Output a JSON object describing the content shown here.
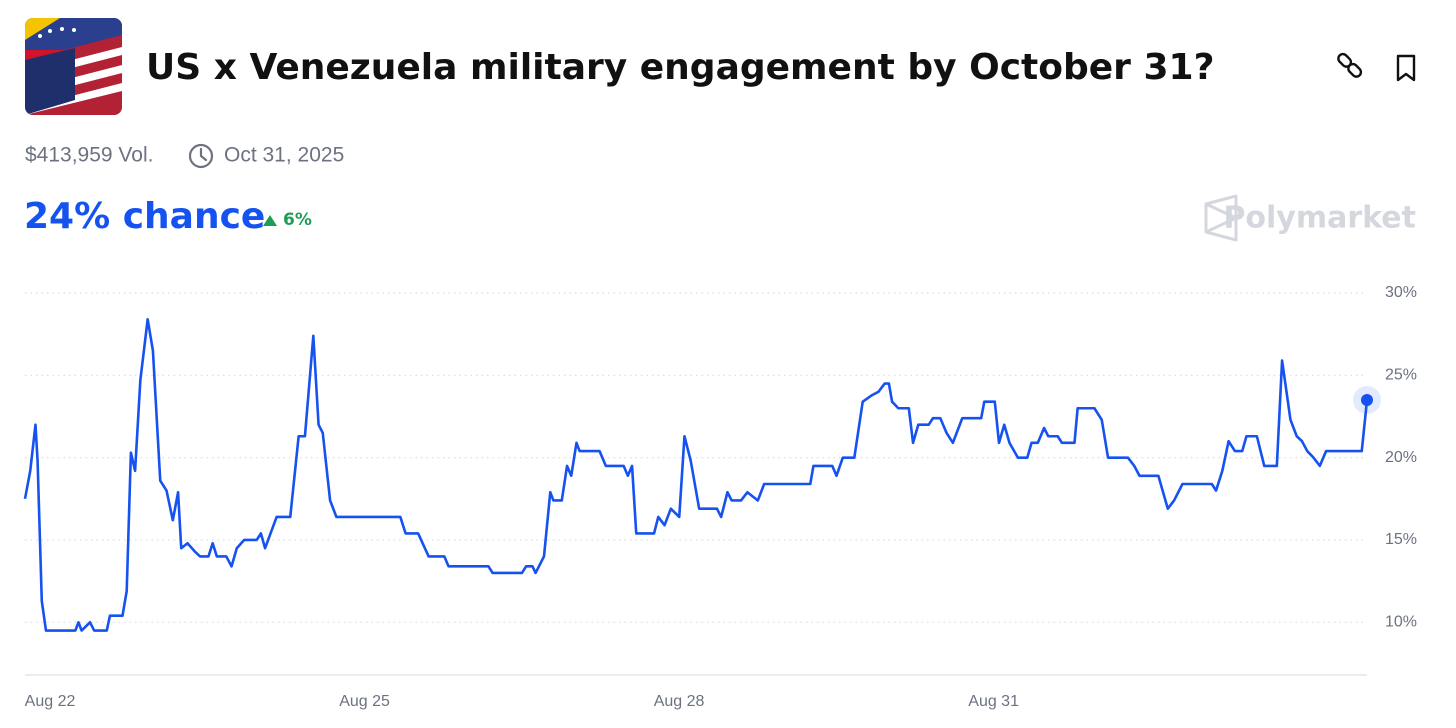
{
  "header": {
    "title": "US x Venezuela military engagement by October 31?",
    "volume": "$413,959 Vol.",
    "end_date": "Oct 31, 2025",
    "chance": "24% chance",
    "change": "6%",
    "brand": "Polymarket"
  },
  "chart_data": {
    "type": "line",
    "color": "#1652f0",
    "grid": true,
    "x": [
      21.86,
      21.91,
      21.96,
      21.98,
      22.02,
      22.06,
      22.34,
      22.37,
      22.4,
      22.48,
      22.52,
      22.64,
      22.67,
      22.79,
      22.83,
      22.87,
      22.91,
      22.96,
      23.03,
      23.08,
      23.15,
      23.21,
      23.27,
      23.32,
      23.35,
      23.41,
      23.48,
      23.53,
      23.61,
      23.65,
      23.69,
      23.78,
      23.83,
      23.88,
      23.95,
      24.07,
      24.11,
      24.15,
      24.26,
      24.39,
      24.47,
      24.53,
      24.61,
      24.66,
      24.7,
      24.77,
      24.83,
      25.44,
      25.49,
      25.61,
      25.71,
      25.86,
      25.9,
      26.28,
      26.32,
      26.6,
      26.64,
      26.7,
      26.73,
      26.81,
      26.87,
      26.9,
      26.98,
      27.03,
      27.07,
      27.12,
      27.15,
      27.34,
      27.4,
      27.57,
      27.61,
      27.65,
      27.69,
      27.86,
      27.9,
      27.96,
      28.02,
      28.1,
      28.15,
      28.21,
      28.29,
      28.46,
      28.5,
      28.56,
      28.6,
      28.69,
      28.75,
      28.85,
      28.91,
      29.35,
      29.38,
      29.56,
      29.6,
      29.66,
      29.77,
      29.85,
      29.94,
      30.0,
      30.06,
      30.1,
      30.13,
      30.19,
      30.29,
      30.33,
      30.38,
      30.48,
      30.52,
      30.59,
      30.65,
      30.71,
      30.8,
      30.98,
      31.01,
      31.11,
      31.15,
      31.2,
      31.25,
      31.33,
      31.42,
      31.46,
      31.52,
      31.58,
      31.62,
      31.71,
      31.75,
      31.87,
      31.9,
      32.06,
      32.13,
      32.19,
      32.38,
      32.44,
      32.49,
      32.67,
      32.76,
      32.82,
      32.9,
      33.18,
      33.22,
      33.28,
      33.34,
      33.4,
      33.47,
      33.51,
      33.61,
      33.68,
      33.8,
      33.85,
      33.93,
      33.99,
      34.04,
      34.09,
      34.15,
      34.21,
      34.27,
      34.61,
      34.66
    ],
    "values": [
      17.5,
      19.2,
      22.0,
      19.8,
      11.3,
      9.5,
      9.5,
      10.0,
      9.5,
      10.0,
      9.5,
      9.5,
      10.4,
      10.4,
      11.9,
      20.3,
      19.2,
      24.7,
      28.4,
      26.5,
      18.6,
      18.0,
      16.2,
      17.9,
      14.5,
      14.8,
      14.3,
      14.0,
      14.0,
      14.8,
      14.0,
      14.0,
      13.4,
      14.5,
      15.0,
      15.0,
      15.4,
      14.5,
      16.4,
      16.4,
      21.3,
      21.3,
      27.4,
      22.0,
      21.5,
      17.4,
      16.4,
      16.4,
      15.4,
      15.4,
      14.0,
      14.0,
      13.4,
      13.4,
      13.0,
      13.0,
      13.4,
      13.4,
      13.0,
      14.0,
      17.9,
      17.4,
      17.4,
      19.5,
      18.9,
      20.9,
      20.4,
      20.4,
      19.5,
      19.5,
      18.9,
      19.5,
      15.4,
      15.4,
      16.4,
      15.9,
      16.9,
      16.4,
      21.3,
      19.8,
      16.9,
      16.9,
      16.4,
      17.9,
      17.4,
      17.4,
      17.9,
      17.4,
      18.4,
      18.4,
      19.5,
      19.5,
      18.9,
      20.0,
      20.0,
      23.4,
      23.8,
      24.0,
      24.5,
      24.5,
      23.4,
      23.0,
      23.0,
      20.9,
      22.0,
      22.0,
      22.4,
      22.4,
      21.5,
      20.9,
      22.4,
      22.4,
      23.4,
      23.4,
      20.9,
      22.0,
      20.9,
      20.0,
      20.0,
      20.9,
      20.9,
      21.8,
      21.3,
      21.3,
      20.9,
      20.9,
      23.0,
      23.0,
      22.3,
      20.0,
      20.0,
      19.5,
      18.9,
      18.9,
      16.9,
      17.4,
      18.4,
      18.4,
      18.0,
      19.2,
      21.0,
      20.4,
      20.4,
      21.3,
      21.3,
      19.5,
      19.5,
      25.9,
      22.3,
      21.3,
      21.0,
      20.4,
      20.0,
      19.5,
      20.4,
      20.4,
      23.5
    ],
    "xlim": [
      21.86,
      34.66
    ],
    "xticks": [
      {
        "value": 22,
        "label": "Aug 22"
      },
      {
        "value": 25,
        "label": "Aug 25"
      },
      {
        "value": 28,
        "label": "Aug 28"
      },
      {
        "value": 31,
        "label": "Aug 31"
      }
    ],
    "ylim": [
      6.8,
      30
    ],
    "yticks": [
      {
        "value": 10,
        "label": "10%"
      },
      {
        "value": 15,
        "label": "15%"
      },
      {
        "value": 20,
        "label": "20%"
      },
      {
        "value": 25,
        "label": "25%"
      },
      {
        "value": 30,
        "label": "30%"
      }
    ]
  }
}
